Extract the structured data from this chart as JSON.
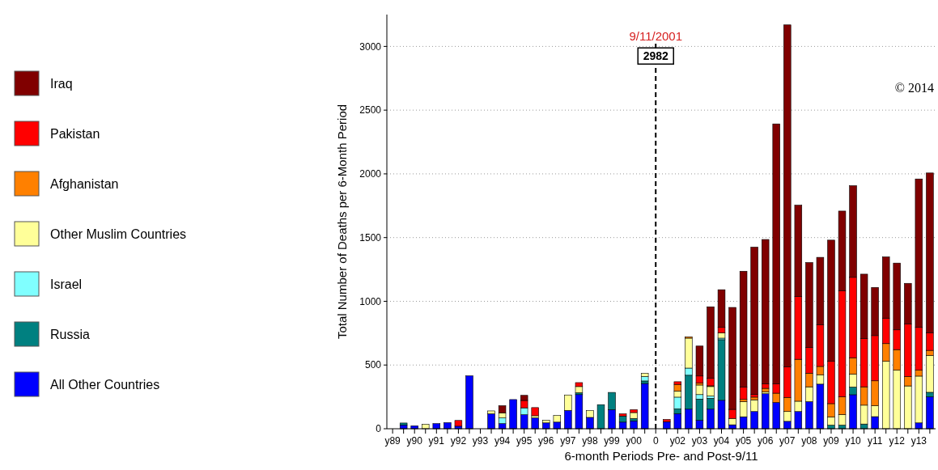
{
  "chart_data": {
    "type": "bar",
    "stacked": true,
    "xlabel": "6-month Periods Pre- and Post-9/11",
    "ylabel": "Total Number of Deaths per 6-Month Period",
    "categories": [
      "y89",
      null,
      "y90",
      null,
      "y91",
      null,
      "y92",
      null,
      "y93",
      null,
      "y94",
      null,
      "y95",
      null,
      "y96",
      null,
      "y97",
      null,
      "y98",
      null,
      "y99",
      null,
      "y00",
      null,
      "0",
      null,
      "y02",
      null,
      "y03",
      null,
      "y04",
      null,
      "y05",
      null,
      "y06",
      null,
      "y07",
      null,
      "y08",
      null,
      "y09",
      null,
      "y10",
      null,
      "y11",
      null,
      "y12",
      null,
      "y13",
      null
    ],
    "series": [
      {
        "name": "All Other Countries",
        "color": "#0000ff",
        "values": [
          null,
          30,
          23,
          null,
          40,
          48,
          20,
          415,
          null,
          117,
          40,
          229,
          110,
          85,
          46,
          52,
          144,
          268,
          89,
          null,
          150,
          52,
          62,
          355,
          null,
          55,
          119,
          154,
          67,
          154,
          223,
          31,
          94,
          135,
          275,
          206,
          58,
          135,
          213,
          350,
          null,
          null,
          267,
          null,
          95,
          null,
          null,
          null,
          46,
          251
        ]
      },
      {
        "name": "Russia",
        "color": "#008080",
        "values": [
          null,
          15,
          null,
          null,
          null,
          null,
          null,
          null,
          null,
          null,
          null,
          null,
          null,
          null,
          null,
          null,
          null,
          15,
          null,
          189,
          135,
          48,
          19,
          20,
          null,
          null,
          37,
          266,
          166,
          85,
          476,
          null,
          null,
          null,
          null,
          null,
          null,
          null,
          null,
          null,
          28,
          28,
          60,
          37,
          null,
          null,
          null,
          null,
          null,
          35
        ]
      },
      {
        "name": "Israel",
        "color": "#80ffff",
        "values": [
          null,
          null,
          null,
          null,
          null,
          null,
          null,
          null,
          null,
          null,
          45,
          null,
          54,
          null,
          null,
          null,
          null,
          null,
          null,
          null,
          null,
          null,
          null,
          35,
          null,
          null,
          92,
          56,
          35,
          17,
          12,
          null,
          null,
          null,
          null,
          null,
          null,
          null,
          null,
          null,
          null,
          null,
          null,
          null,
          null,
          null,
          null,
          null,
          null,
          null
        ]
      },
      {
        "name": "Other Muslim Countries",
        "color": "#ffff99",
        "values": [
          null,
          null,
          null,
          35,
          null,
          null,
          null,
          null,
          null,
          23,
          40,
          null,
          null,
          17,
          21,
          52,
          121,
          48,
          54,
          null,
          null,
          null,
          46,
          25,
          null,
          null,
          48,
          235,
          75,
          75,
          42,
          50,
          119,
          92,
          15,
          null,
          77,
          81,
          116,
          74,
          65,
          84,
          102,
          148,
          86,
          529,
          459,
          336,
          367,
          290
        ]
      },
      {
        "name": "Afghanistan",
        "color": "#ff8000",
        "values": [
          null,
          null,
          null,
          null,
          null,
          null,
          null,
          null,
          null,
          null,
          null,
          null,
          null,
          null,
          null,
          null,
          null,
          null,
          null,
          null,
          null,
          null,
          null,
          null,
          null,
          null,
          52,
          10,
          15,
          6,
          null,
          null,
          17,
          21,
          27,
          73,
          111,
          329,
          107,
          65,
          104,
          139,
          128,
          144,
          195,
          139,
          162,
          74,
          46,
          39
        ]
      },
      {
        "name": "Pakistan",
        "color": "#ff0000",
        "values": [
          null,
          null,
          null,
          null,
          null,
          null,
          45,
          null,
          null,
          null,
          null,
          null,
          58,
          64,
          null,
          null,
          null,
          31,
          null,
          null,
          null,
          17,
          23,
          null,
          null,
          18,
          21,
          null,
          56,
          58,
          42,
          71,
          98,
          23,
          35,
          73,
          241,
          494,
          202,
          327,
          332,
          833,
          631,
          378,
          355,
          200,
          155,
          411,
          336,
          139
        ]
      },
      {
        "name": "Iraq",
        "color": "#800000",
        "values": [
          null,
          null,
          null,
          null,
          null,
          null,
          null,
          null,
          null,
          null,
          56,
          null,
          40,
          null,
          null,
          null,
          null,
          null,
          null,
          null,
          null,
          null,
          null,
          null,
          null,
          null,
          null,
          null,
          235,
          562,
          296,
          800,
          908,
          1154,
          1133,
          2040,
          2682,
          715,
          666,
          529,
          951,
          624,
          719,
          506,
          378,
          480,
          524,
          320,
          1165,
          1253
        ]
      }
    ],
    "ylim": [
      0,
      3250
    ],
    "yticks": [
      0,
      500,
      1000,
      1500,
      2000,
      2500,
      3000
    ],
    "grid": "y",
    "legend": "left",
    "ref_lines": [
      {
        "axis": "x",
        "value": "0",
        "label": "9/11/2001",
        "line_style": "dashed",
        "color": "#000000"
      }
    ],
    "annotations": [
      {
        "text": "2982",
        "x": "0",
        "y": 2925
      },
      "© 2014"
    ]
  }
}
